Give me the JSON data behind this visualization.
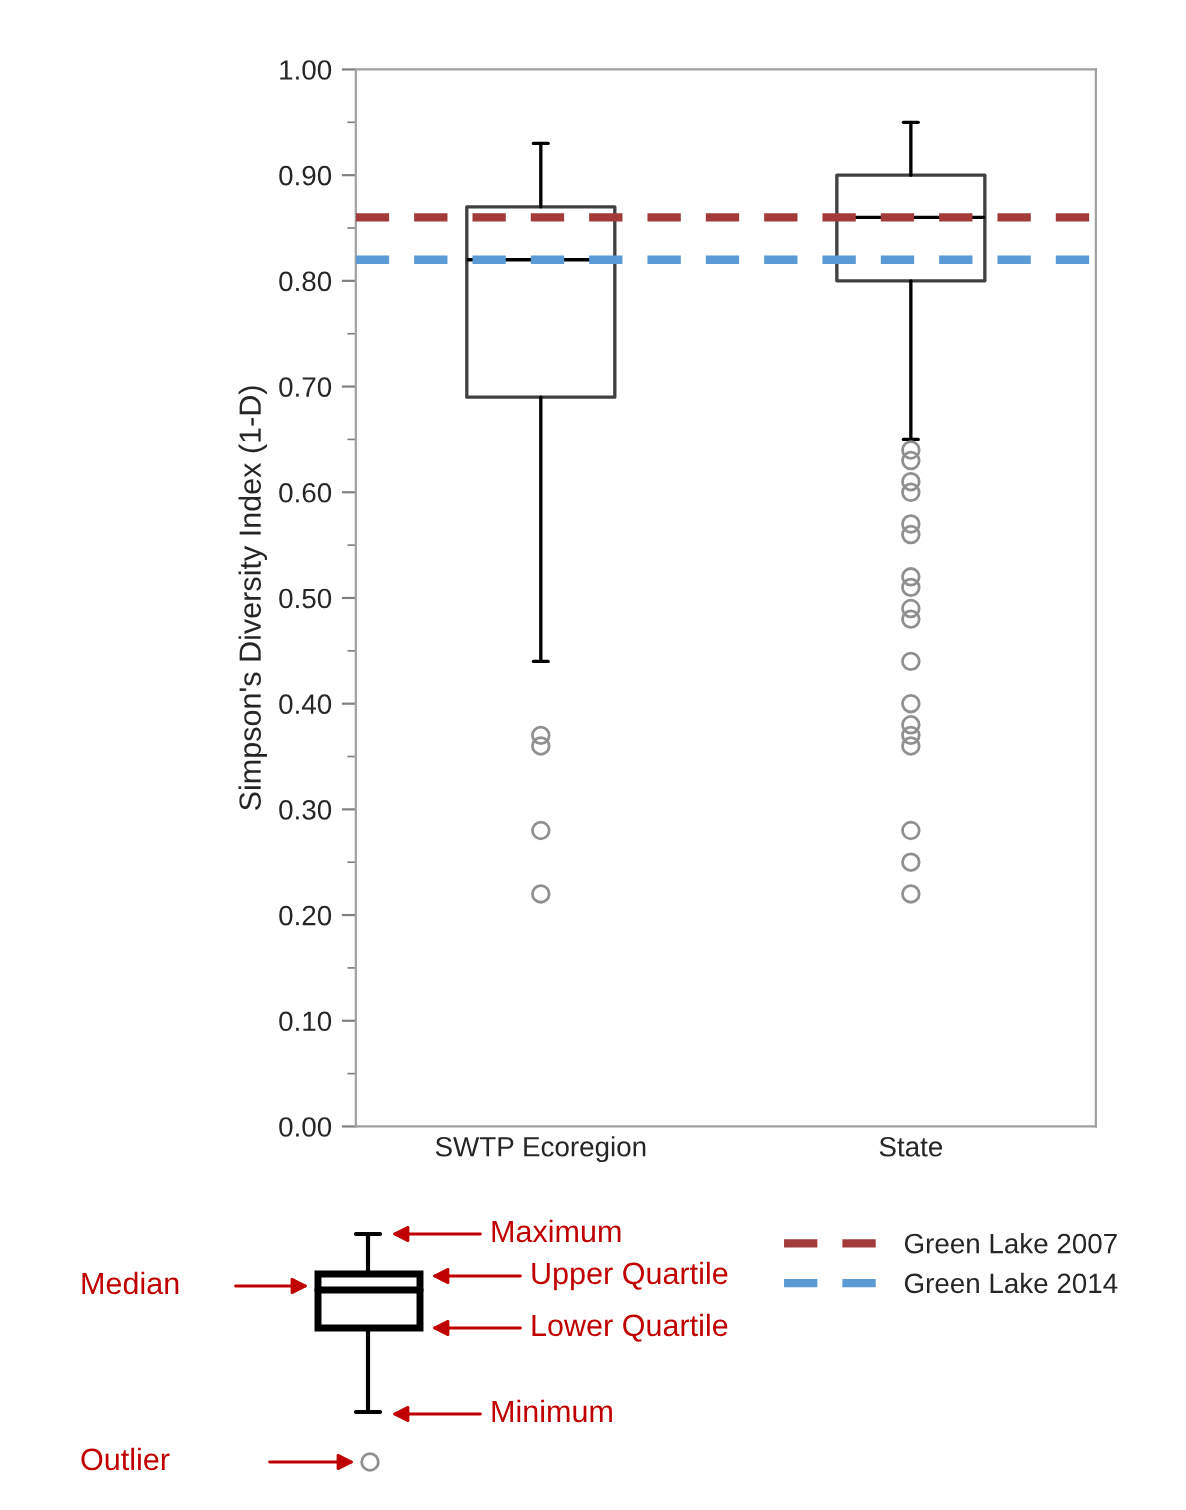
{
  "chart_data": {
    "type": "box",
    "ylabel": "Simpson's Diversity Index (1-D)",
    "categories": [
      "SWTP Ecoregion",
      "State"
    ],
    "boxes": [
      {
        "low": 0.44,
        "q1": 0.69,
        "median": 0.82,
        "q3": 0.87,
        "high": 0.93,
        "outliers": [
          0.37,
          0.36,
          0.28,
          0.22
        ]
      },
      {
        "low": 0.65,
        "q1": 0.8,
        "median": 0.86,
        "q3": 0.9,
        "high": 0.95,
        "outliers": [
          0.64,
          0.63,
          0.61,
          0.6,
          0.57,
          0.56,
          0.52,
          0.51,
          0.49,
          0.48,
          0.44,
          0.4,
          0.38,
          0.37,
          0.36,
          0.28,
          0.25,
          0.22
        ]
      }
    ],
    "ylim": [
      0,
      1
    ],
    "yticks": [
      {
        "value": 0,
        "label": "0.00"
      },
      {
        "value": 0.1,
        "label": "0.10"
      },
      {
        "value": 0.2,
        "label": "0.20"
      },
      {
        "value": 0.3,
        "label": "0.30"
      },
      {
        "value": 0.4,
        "label": "0.40"
      },
      {
        "value": 0.5,
        "label": "0.50"
      },
      {
        "value": 0.6,
        "label": "0.60"
      },
      {
        "value": 0.7,
        "label": "0.70"
      },
      {
        "value": 0.8,
        "label": "0.80"
      },
      {
        "value": 0.9,
        "label": "0.90"
      },
      {
        "value": 1,
        "label": "1.00"
      }
    ],
    "ref_lines": [
      {
        "axis": "y",
        "value": 0.86,
        "label": "Green Lake 2007",
        "color": "#a33b3b",
        "line_style": "dashed"
      },
      {
        "axis": "y",
        "value": 0.82,
        "label": "Green Lake 2014",
        "color": "#5b9bd5",
        "line_style": "dashed"
      }
    ],
    "legend": "bottom right",
    "grid": false,
    "annotations": [
      "Maximum",
      "Upper Quartile",
      "Lower Quartile",
      "Minimum",
      "Median",
      "Outlier"
    ]
  }
}
